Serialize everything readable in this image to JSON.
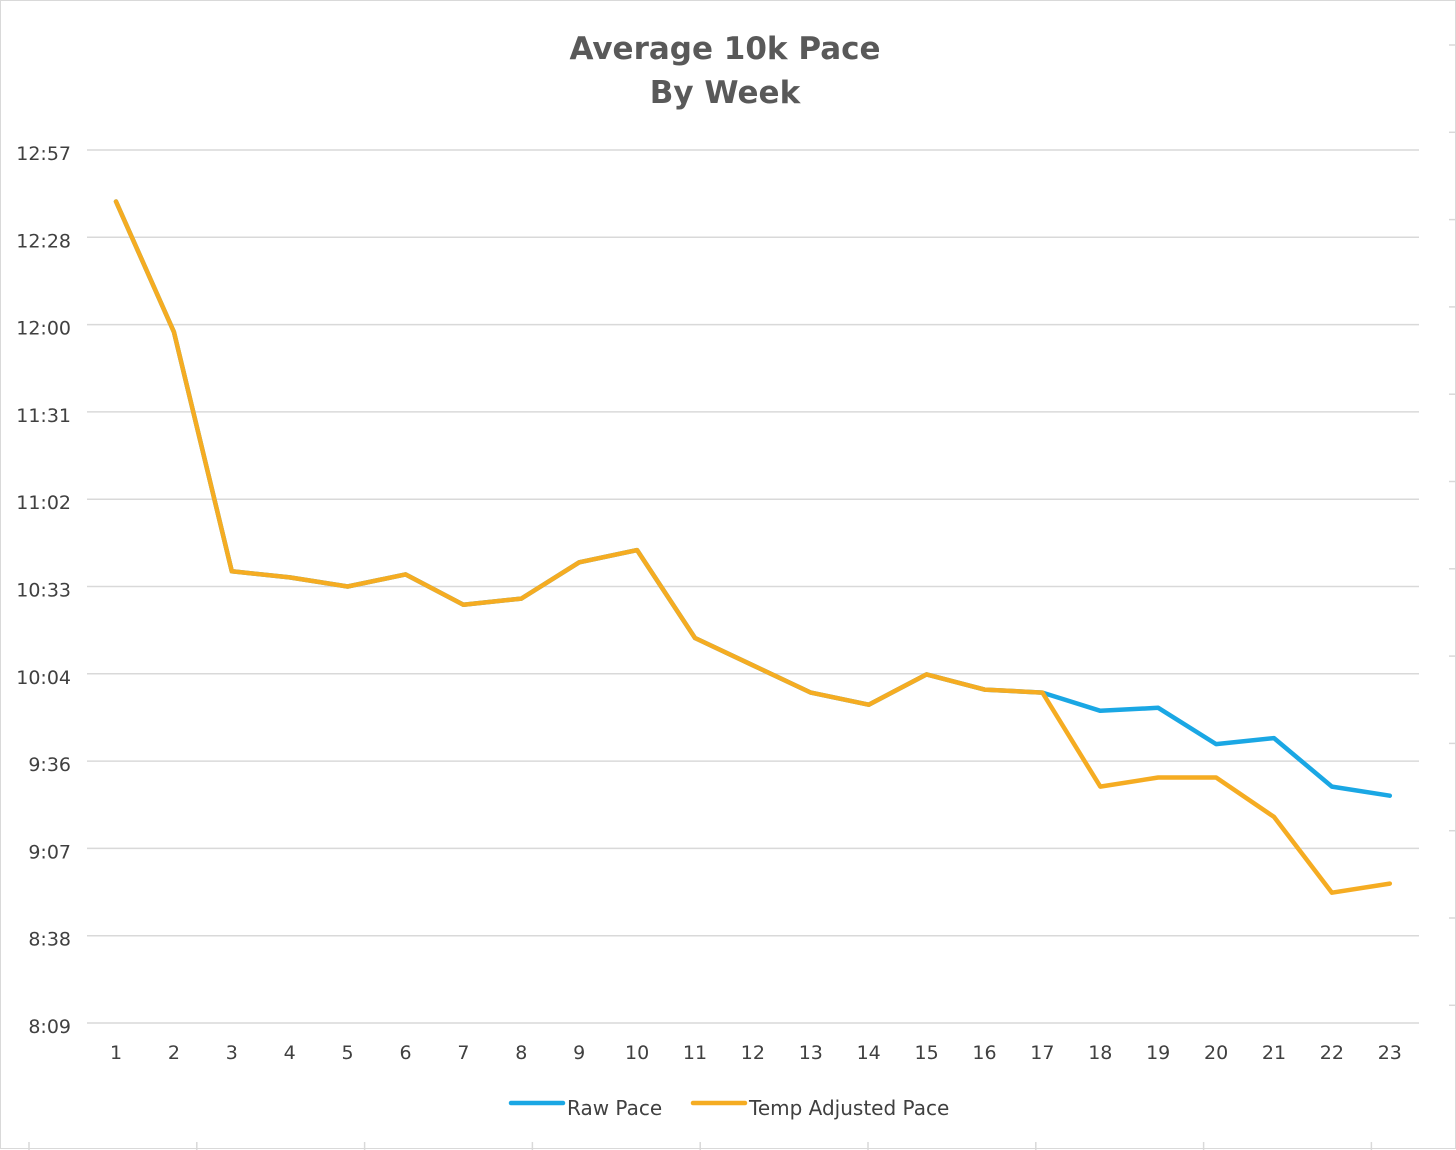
{
  "chart_data": {
    "type": "line",
    "title": [
      "Average 10k Pace",
      "By Week"
    ],
    "xlabel": "",
    "ylabel": "",
    "x": [
      1,
      2,
      3,
      4,
      5,
      6,
      7,
      8,
      9,
      10,
      11,
      12,
      13,
      14,
      15,
      16,
      17,
      18,
      19,
      20,
      21,
      22,
      23
    ],
    "y_ticks": [
      "12:57",
      "12:28",
      "12:00",
      "11:31",
      "11:02",
      "10:33",
      "10:04",
      "9:36",
      "9:07",
      "8:38",
      "8:09"
    ],
    "ylim": [
      "8:09",
      "12:57"
    ],
    "grid": true,
    "legend_position": "bottom",
    "series": [
      {
        "name": "Raw Pace",
        "color": "#1aa7e4",
        "values": [
          "12:40",
          "11:57",
          "10:38",
          "10:36",
          "10:33",
          "10:37",
          "10:27",
          "10:29",
          "10:41",
          "10:45",
          "10:16",
          "10:07",
          "9:58",
          "9:54",
          "10:04",
          "9:59",
          "9:58",
          "9:52",
          "9:53",
          "9:41",
          "9:43",
          "9:27",
          "9:24"
        ]
      },
      {
        "name": "Temp Adjusted Pace",
        "color": "#f5ac22",
        "values": [
          "12:40",
          "11:57",
          "10:38",
          "10:36",
          "10:33",
          "10:37",
          "10:27",
          "10:29",
          "10:41",
          "10:45",
          "10:16",
          "10:07",
          "9:58",
          "9:54",
          "10:04",
          "9:59",
          "9:58",
          "9:27",
          "9:30",
          "9:30",
          "9:17",
          "8:52",
          "8:55"
        ]
      }
    ]
  }
}
